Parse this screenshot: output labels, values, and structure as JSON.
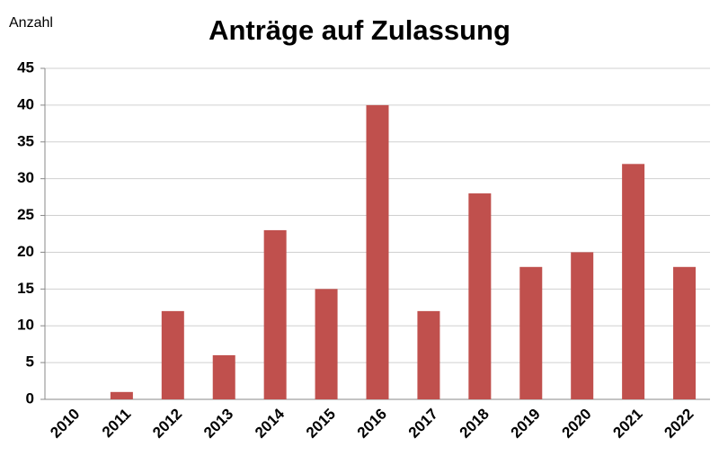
{
  "chart_data": {
    "type": "bar",
    "title": "Anträge auf Zulassung",
    "y_label": "Anzahl",
    "categories": [
      "2010",
      "2011",
      "2012",
      "2013",
      "2014",
      "2015",
      "2016",
      "2017",
      "2018",
      "2019",
      "2020",
      "2021",
      "2022"
    ],
    "values": [
      0,
      1,
      12,
      6,
      23,
      15,
      40,
      12,
      28,
      18,
      20,
      32,
      18
    ],
    "color": "#c0504d",
    "ylim": [
      0,
      45
    ],
    "yticks": [
      0,
      5,
      10,
      15,
      20,
      25,
      30,
      35,
      40,
      45
    ],
    "grid": true
  }
}
